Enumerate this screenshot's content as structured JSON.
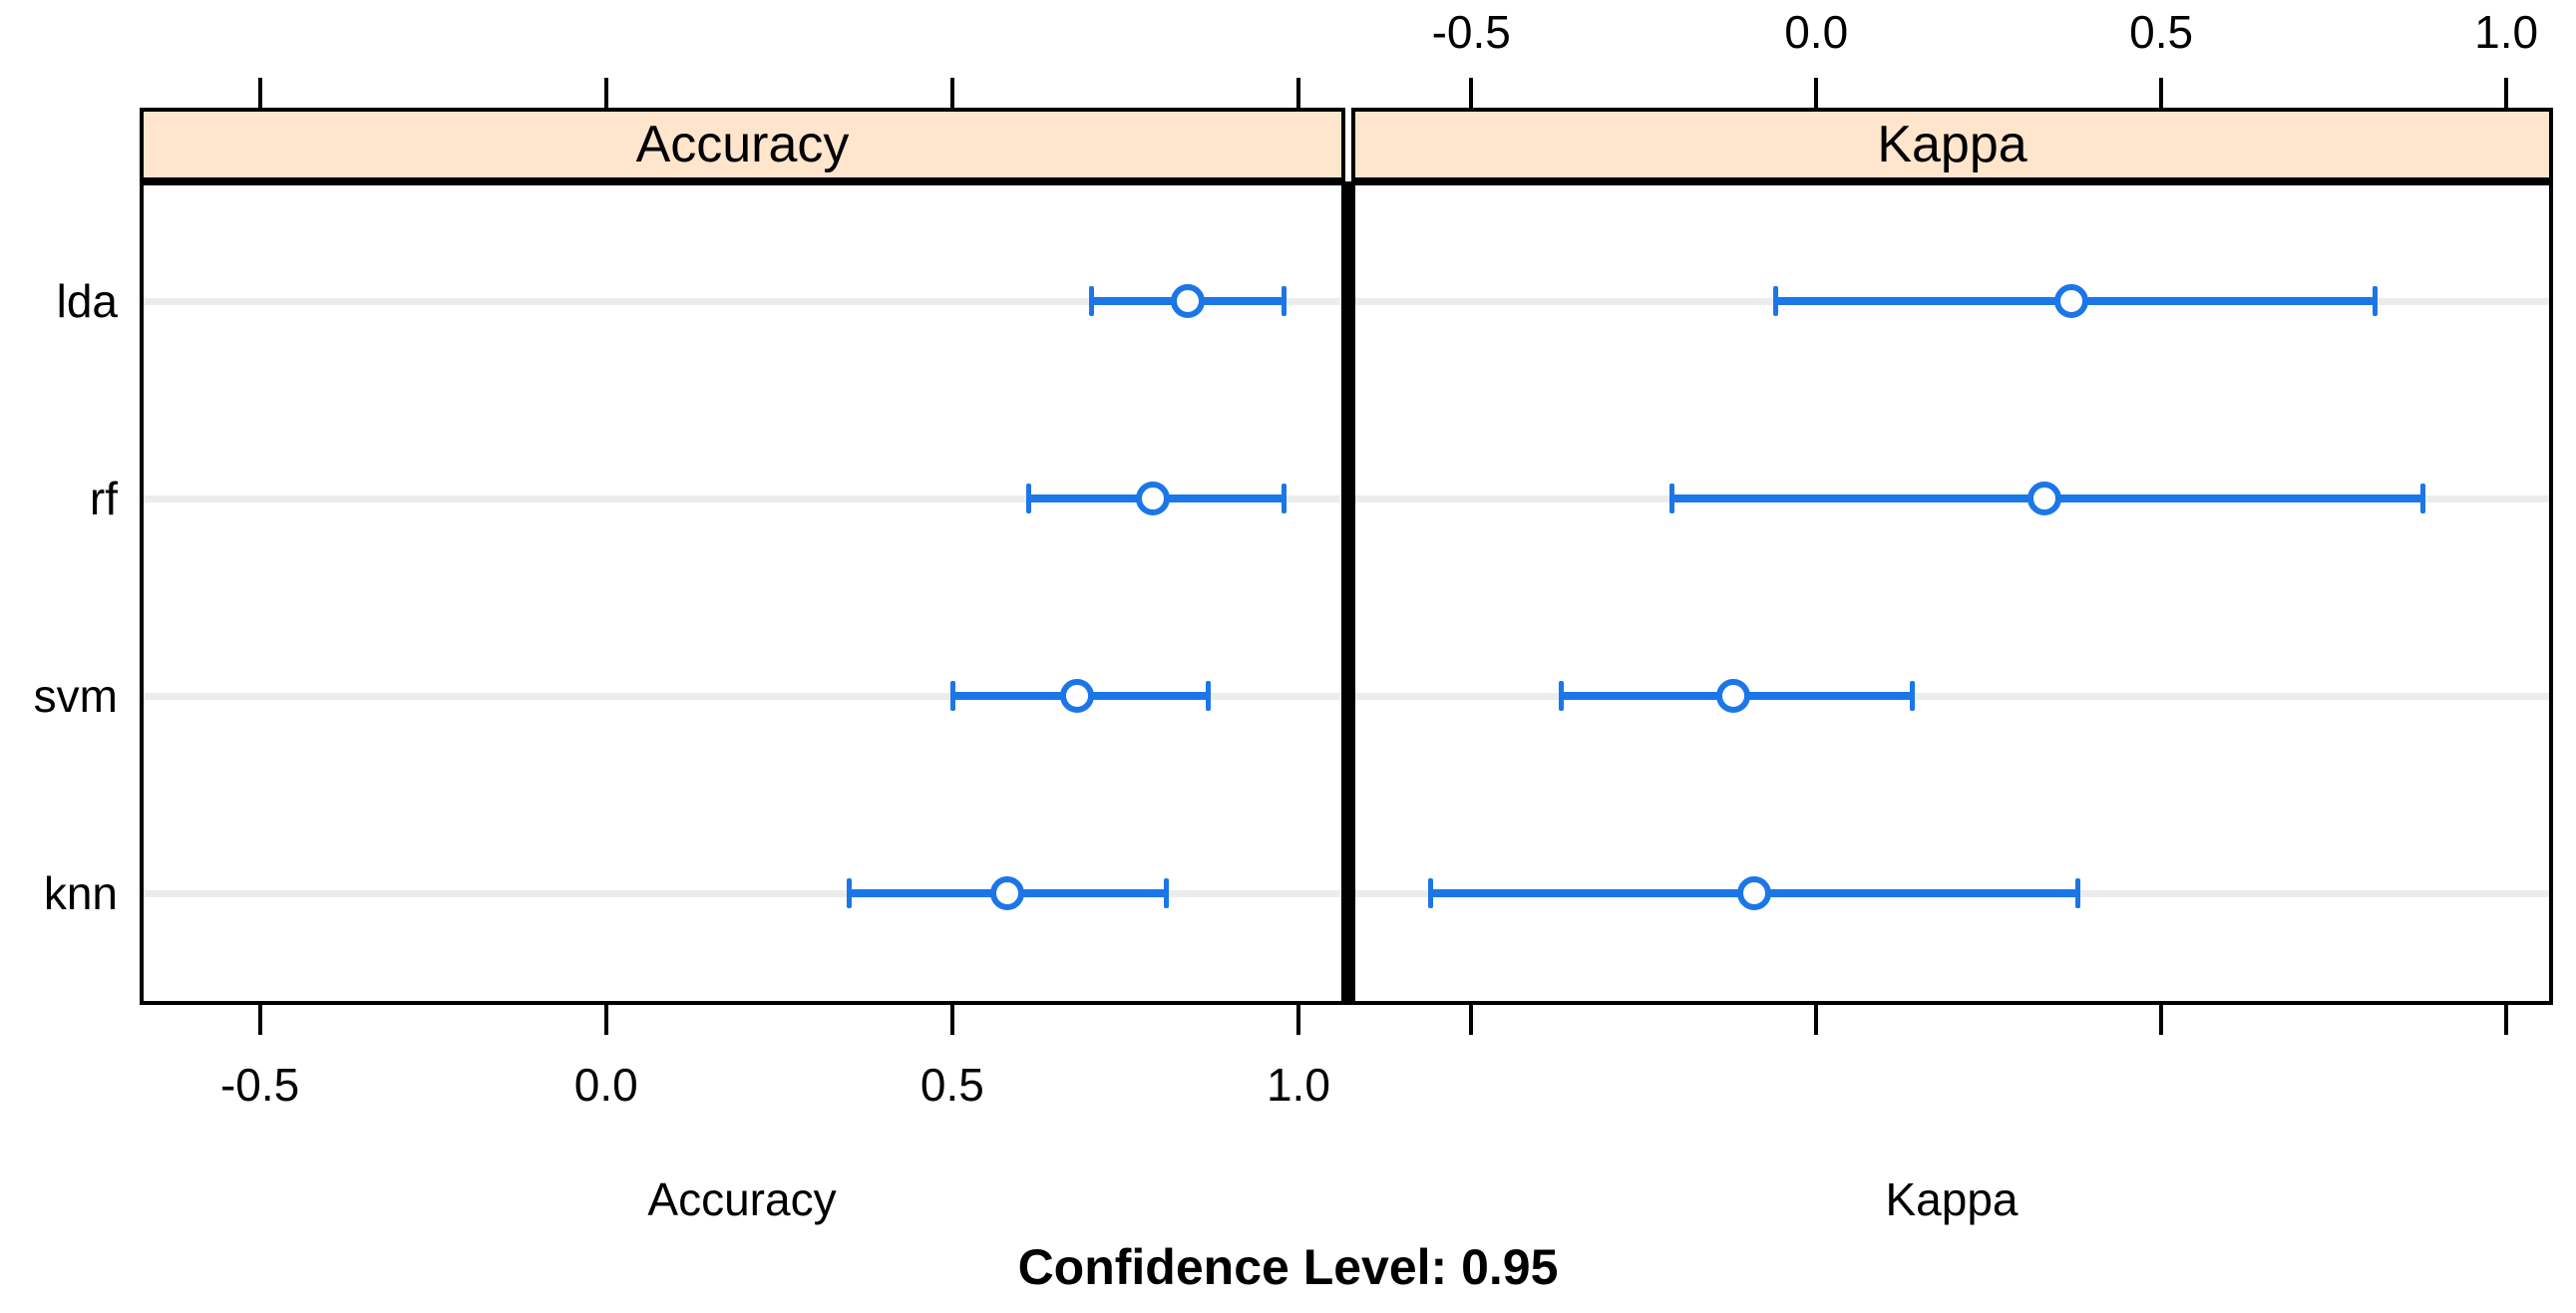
{
  "chart_data": {
    "type": "dotplot-ci",
    "caption": "Confidence Level: 0.95",
    "confidence_level": 0.95,
    "models": [
      "lda",
      "rf",
      "svm",
      "knn"
    ],
    "x_tick_values": [
      -0.5,
      0.0,
      0.5,
      1.0
    ],
    "x_tick_labels": [
      "-0.5",
      "0.0",
      "0.5",
      "1.0"
    ],
    "xlim": [
      -0.668,
      1.062
    ],
    "grid": "horizontal-row-lines",
    "legend": "none",
    "panels": [
      {
        "title": "Accuracy",
        "axis_label": "Accuracy",
        "axis_labels_position": "bottom",
        "series": [
          {
            "model": "lda",
            "lower": 0.7,
            "estimate": 0.84,
            "upper": 0.98
          },
          {
            "model": "rf",
            "lower": 0.61,
            "estimate": 0.79,
            "upper": 0.98
          },
          {
            "model": "svm",
            "lower": 0.5,
            "estimate": 0.68,
            "upper": 0.87
          },
          {
            "model": "knn",
            "lower": 0.35,
            "estimate": 0.58,
            "upper": 0.81
          }
        ]
      },
      {
        "title": "Kappa",
        "axis_label": "Kappa",
        "axis_labels_position": "top",
        "series": [
          {
            "model": "lda",
            "lower": -0.06,
            "estimate": 0.37,
            "upper": 0.81
          },
          {
            "model": "rf",
            "lower": -0.21,
            "estimate": 0.33,
            "upper": 0.88
          },
          {
            "model": "svm",
            "lower": -0.37,
            "estimate": -0.12,
            "upper": 0.14
          },
          {
            "model": "knn",
            "lower": -0.56,
            "estimate": -0.09,
            "upper": 0.38
          }
        ]
      }
    ],
    "colors": {
      "interval": "#1B76E8",
      "strip_background": "#FFE5CC",
      "gridline": "#ECECEC",
      "border": "#000000",
      "background": "#FFFFFF"
    }
  }
}
